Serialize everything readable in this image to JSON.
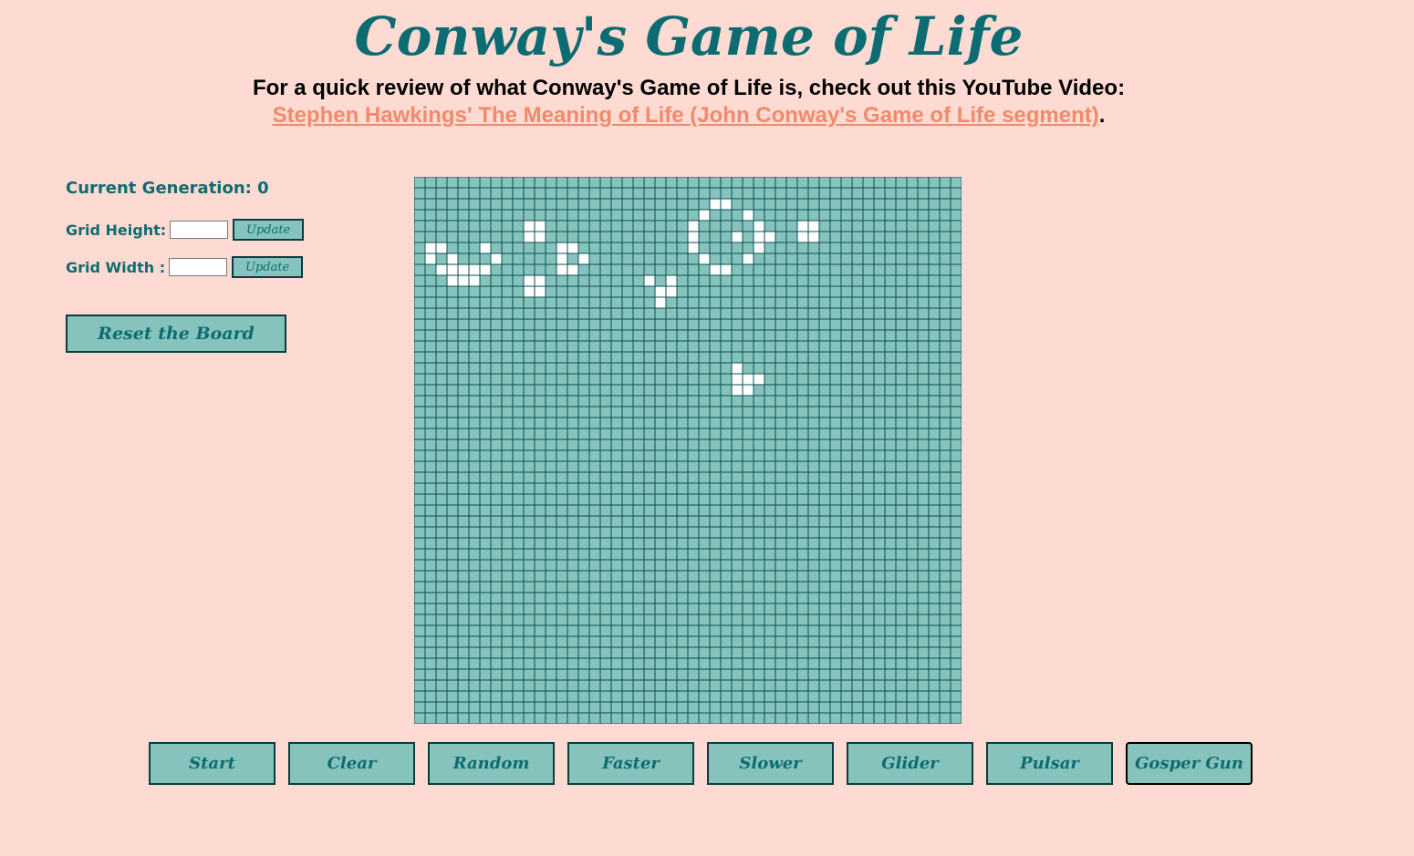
{
  "header": {
    "title": "Conway's Game of Life",
    "intro_text": "For a quick review of what Conway's Game of Life is, check out this YouTube Video:",
    "video_link_text": "Stephen Hawkings' The Meaning of Life (John Conway's Game of Life segment)",
    "trailing_period": "."
  },
  "controls": {
    "generation_label": "Current Generation: 0",
    "grid_height_label": "Grid Height:",
    "grid_height_value": "",
    "grid_width_label": "Grid Width :",
    "grid_width_value": "",
    "update_label": "Update",
    "reset_label": "Reset the Board"
  },
  "board": {
    "rows": 50,
    "cols": 50,
    "dead_color": "#86c3bc",
    "live_color": "#ffffff",
    "line_color": "#0a4f55",
    "live_cells": [
      [
        2,
        27
      ],
      [
        2,
        28
      ],
      [
        3,
        26
      ],
      [
        3,
        30
      ],
      [
        4,
        10
      ],
      [
        4,
        11
      ],
      [
        4,
        25
      ],
      [
        4,
        31
      ],
      [
        4,
        35
      ],
      [
        4,
        36
      ],
      [
        5,
        10
      ],
      [
        5,
        11
      ],
      [
        5,
        25
      ],
      [
        5,
        29
      ],
      [
        5,
        31
      ],
      [
        5,
        32
      ],
      [
        5,
        35
      ],
      [
        5,
        36
      ],
      [
        6,
        1
      ],
      [
        6,
        2
      ],
      [
        6,
        6
      ],
      [
        6,
        13
      ],
      [
        6,
        14
      ],
      [
        6,
        25
      ],
      [
        6,
        31
      ],
      [
        7,
        1
      ],
      [
        7,
        3
      ],
      [
        7,
        7
      ],
      [
        7,
        13
      ],
      [
        7,
        15
      ],
      [
        7,
        26
      ],
      [
        7,
        30
      ],
      [
        8,
        2
      ],
      [
        8,
        3
      ],
      [
        8,
        4
      ],
      [
        8,
        5
      ],
      [
        8,
        6
      ],
      [
        8,
        13
      ],
      [
        8,
        14
      ],
      [
        8,
        27
      ],
      [
        8,
        28
      ],
      [
        9,
        3
      ],
      [
        9,
        4
      ],
      [
        9,
        5
      ],
      [
        9,
        10
      ],
      [
        9,
        11
      ],
      [
        9,
        21
      ],
      [
        9,
        23
      ],
      [
        10,
        10
      ],
      [
        10,
        11
      ],
      [
        10,
        22
      ],
      [
        10,
        23
      ],
      [
        11,
        22
      ],
      [
        17,
        29
      ],
      [
        18,
        29
      ],
      [
        18,
        30
      ],
      [
        18,
        31
      ],
      [
        19,
        29
      ],
      [
        19,
        30
      ]
    ]
  },
  "bottom_buttons": [
    "Start",
    "Clear",
    "Random",
    "Faster",
    "Slower",
    "Glider",
    "Pulsar",
    "Gosper Gun"
  ]
}
